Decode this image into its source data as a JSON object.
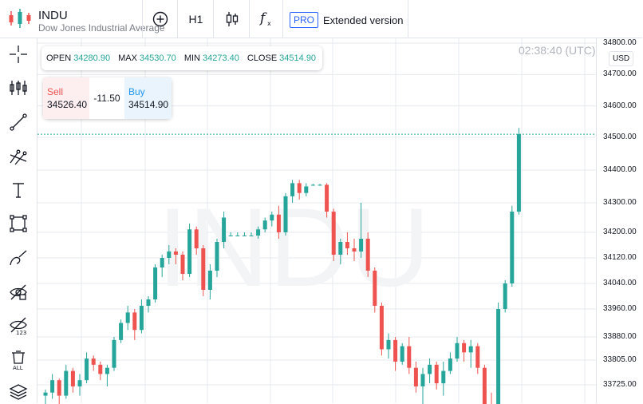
{
  "header": {
    "symbol": "INDU",
    "description": "Dow Jones Industrial Average",
    "timeframe": "H1",
    "pro_badge": "PRO",
    "extended_label": "Extended version"
  },
  "toolbar_icons": [
    "add-indicator-icon",
    "candle-type-icon",
    "function-icon"
  ],
  "left_tools": [
    "crosshair-icon",
    "indicators-icon",
    "trend-line-icon",
    "fib-icon",
    "text-icon",
    "rectangle-icon",
    "brush-icon",
    "hide-drawings-icon",
    "hide-indicators-icon",
    "delete-all-icon",
    "layers-icon"
  ],
  "ohlc": {
    "open_label": "OPEN",
    "open": "34280.90",
    "max_label": "MAX",
    "max": "34530.70",
    "min_label": "MIN",
    "min": "34273.40",
    "close_label": "CLOSE",
    "close": "34514.90"
  },
  "trade": {
    "sell_label": "Sell",
    "sell_price": "34526.40",
    "spread": "-11.50",
    "buy_label": "Buy",
    "buy_price": "34514.90"
  },
  "clock": "02:38:40 (UTC)",
  "currency": "USD",
  "watermark": "INDU",
  "colors": {
    "up": "#26a69a",
    "down": "#ef5350",
    "accent": "#2962ff",
    "grid": "#e6e9ef"
  },
  "chart_data": {
    "type": "candlestick",
    "y_ticks": [
      "34800.00",
      "34700.00",
      "34600.00",
      "34500.00",
      "34400.00",
      "34300.00",
      "34200.00",
      "34120.00",
      "34040.00",
      "33960.00",
      "33880.00",
      "33805.00",
      "33725.00"
    ],
    "y_tick_values": [
      34800,
      34700,
      34600,
      34500,
      34400,
      34300,
      34200,
      34120,
      34040,
      33960,
      33880,
      33805,
      33725
    ],
    "current_price": 34510,
    "candles": [
      [
        33690,
        33710,
        33640,
        33700
      ],
      [
        33700,
        33760,
        33680,
        33740
      ],
      [
        33740,
        33745,
        33660,
        33690
      ],
      [
        33690,
        33790,
        33680,
        33770
      ],
      [
        33770,
        33780,
        33700,
        33720
      ],
      [
        33720,
        33760,
        33690,
        33740
      ],
      [
        33740,
        33830,
        33730,
        33810
      ],
      [
        33810,
        33820,
        33770,
        33790
      ],
      [
        33790,
        33800,
        33740,
        33760
      ],
      [
        33760,
        33790,
        33720,
        33780
      ],
      [
        33780,
        33880,
        33770,
        33870
      ],
      [
        33870,
        33930,
        33860,
        33920
      ],
      [
        33920,
        33970,
        33900,
        33950
      ],
      [
        33950,
        33960,
        33870,
        33900
      ],
      [
        33900,
        33990,
        33890,
        33970
      ],
      [
        33970,
        34000,
        33950,
        33990
      ],
      [
        33990,
        34100,
        33980,
        34090
      ],
      [
        34090,
        34130,
        34060,
        34120
      ],
      [
        34120,
        34160,
        34100,
        34140
      ],
      [
        34140,
        34150,
        34100,
        34130
      ],
      [
        34130,
        34140,
        34050,
        34070
      ],
      [
        34070,
        34230,
        34060,
        34210
      ],
      [
        34210,
        34220,
        34130,
        34150
      ],
      [
        34150,
        34160,
        34000,
        34020
      ],
      [
        34020,
        34100,
        33990,
        34080
      ],
      [
        34080,
        34180,
        34060,
        34170
      ],
      [
        34170,
        34270,
        34150,
        34250
      ],
      [
        34190,
        34200,
        34188,
        34190
      ],
      [
        34190,
        34200,
        34188,
        34190
      ],
      [
        34190,
        34200,
        34188,
        34190
      ],
      [
        34190,
        34200,
        34188,
        34190
      ],
      [
        34190,
        34220,
        34180,
        34210
      ],
      [
        34210,
        34250,
        34200,
        34240
      ],
      [
        34240,
        34270,
        34220,
        34260
      ],
      [
        34260,
        34290,
        34180,
        34200
      ],
      [
        34200,
        34330,
        34190,
        34320
      ],
      [
        34320,
        34370,
        34300,
        34360
      ],
      [
        34360,
        34370,
        34310,
        34330
      ],
      [
        34330,
        34360,
        34320,
        34350
      ],
      [
        34355,
        34358,
        34352,
        34355
      ],
      [
        34355,
        34358,
        34352,
        34355
      ],
      [
        34355,
        34360,
        34250,
        34270
      ],
      [
        34270,
        34280,
        34110,
        34130
      ],
      [
        34130,
        34180,
        34100,
        34170
      ],
      [
        34170,
        34200,
        34130,
        34150
      ],
      [
        34150,
        34180,
        34110,
        34140
      ],
      [
        34140,
        34300,
        34120,
        34180
      ],
      [
        34180,
        34200,
        34060,
        34080
      ],
      [
        34080,
        34090,
        33950,
        33970
      ],
      [
        33970,
        33980,
        33820,
        33840
      ],
      [
        33840,
        33890,
        33810,
        33870
      ],
      [
        33870,
        33880,
        33770,
        33800
      ],
      [
        33800,
        33860,
        33790,
        33850
      ],
      [
        33850,
        33880,
        33760,
        33780
      ],
      [
        33780,
        33800,
        33700,
        33720
      ],
      [
        33720,
        33780,
        33660,
        33760
      ],
      [
        33760,
        33810,
        33730,
        33790
      ],
      [
        33790,
        33800,
        33710,
        33730
      ],
      [
        33730,
        33800,
        33690,
        33770
      ],
      [
        33770,
        33830,
        33760,
        33810
      ],
      [
        33810,
        33880,
        33800,
        33860
      ],
      [
        33860,
        33870,
        33800,
        33830
      ],
      [
        33830,
        33870,
        33780,
        33850
      ],
      [
        33850,
        33860,
        33760,
        33780
      ],
      [
        33780,
        33790,
        33640,
        33660
      ],
      [
        33660,
        33700,
        33600,
        33640
      ],
      [
        33640,
        33980,
        33600,
        33960
      ],
      [
        33960,
        34050,
        33950,
        34040
      ],
      [
        34040,
        34290,
        34030,
        34270
      ],
      [
        34270,
        34530,
        34260,
        34510
      ]
    ]
  }
}
